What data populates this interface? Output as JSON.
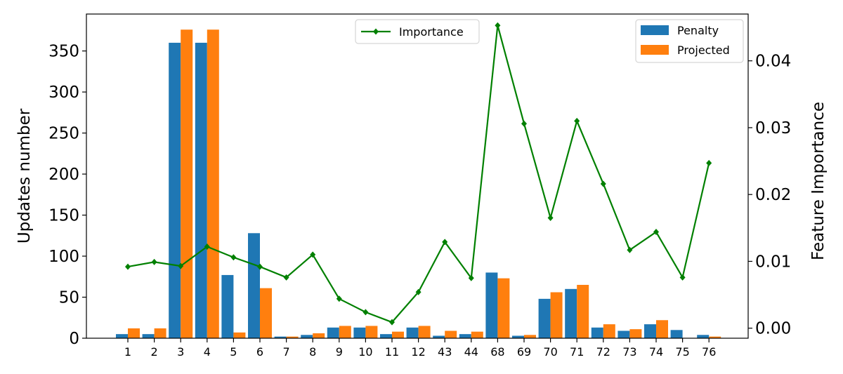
{
  "chart_data": {
    "type": "bar",
    "categories": [
      "1",
      "2",
      "3",
      "4",
      "5",
      "6",
      "7",
      "8",
      "9",
      "10",
      "11",
      "12",
      "43",
      "44",
      "68",
      "69",
      "70",
      "71",
      "72",
      "73",
      "74",
      "75",
      "76"
    ],
    "series": [
      {
        "name": "Penalty",
        "axis": "left",
        "type": "bar",
        "color": "#1f77b4",
        "values": [
          5,
          5,
          360,
          360,
          77,
          128,
          2,
          4,
          13,
          13,
          5,
          13,
          3,
          5,
          80,
          3,
          48,
          60,
          13,
          9,
          17,
          10,
          4
        ]
      },
      {
        "name": "Projected",
        "axis": "left",
        "type": "bar",
        "color": "#ff7f0e",
        "values": [
          12,
          12,
          376,
          376,
          7,
          61,
          2,
          6,
          15,
          15,
          8,
          15,
          9,
          8,
          73,
          4,
          56,
          65,
          17,
          11,
          22,
          0,
          2
        ]
      },
      {
        "name": "Importance",
        "axis": "right",
        "type": "line",
        "color": "#008000",
        "values": [
          0.0092,
          0.0099,
          0.0093,
          0.0122,
          0.0106,
          0.0092,
          0.0076,
          0.011,
          0.0044,
          0.0024,
          0.0009,
          0.0054,
          0.0129,
          0.0075,
          0.0453,
          0.0306,
          0.0165,
          0.031,
          0.0216,
          0.0117,
          0.0144,
          0.0076,
          0.0247
        ]
      }
    ],
    "ylabel": "Updates number",
    "y2label": "Feature Importance",
    "ylim": [
      0,
      395
    ],
    "y2lim": [
      -0.0015,
      0.047
    ],
    "yticks": [
      0,
      50,
      100,
      150,
      200,
      250,
      300,
      350
    ],
    "y2ticks": [
      0.0,
      0.01,
      0.02,
      0.03,
      0.04
    ],
    "y2tick_labels": [
      "0.00",
      "0.01",
      "0.02",
      "0.03",
      "0.04"
    ],
    "grid": false,
    "legends": [
      {
        "placement": "top-center",
        "entries": [
          "Importance"
        ]
      },
      {
        "placement": "top-right",
        "entries": [
          "Penalty",
          "Projected"
        ]
      }
    ]
  }
}
